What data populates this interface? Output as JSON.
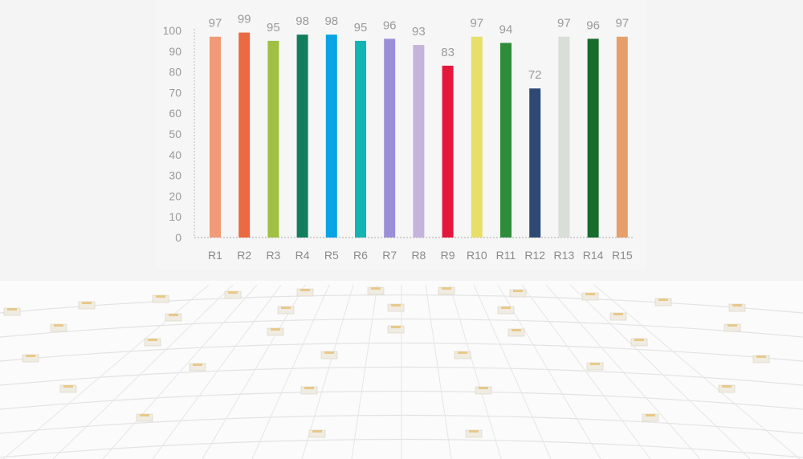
{
  "chart_data": {
    "type": "bar",
    "title": "",
    "xlabel": "",
    "ylabel": "",
    "ylim": [
      0,
      100
    ],
    "yticks": [
      0,
      10,
      20,
      30,
      40,
      50,
      60,
      70,
      80,
      90,
      100
    ],
    "grid": false,
    "categories": [
      "R1",
      "R2",
      "R3",
      "R4",
      "R5",
      "R6",
      "R7",
      "R8",
      "R9",
      "R10",
      "R11",
      "R12",
      "R13",
      "R14",
      "R15"
    ],
    "values": [
      97,
      99,
      95,
      98,
      98,
      95,
      96,
      93,
      83,
      97,
      94,
      72,
      97,
      96,
      97
    ],
    "colors": [
      "#f09a78",
      "#ea6a42",
      "#9fc042",
      "#127e5e",
      "#0aa3e4",
      "#12b5b2",
      "#9b8fd8",
      "#c5b3da",
      "#e3183c",
      "#e6e06a",
      "#2f8d3a",
      "#2e4a74",
      "#d9ded8",
      "#176b2c",
      "#e69f69"
    ]
  }
}
